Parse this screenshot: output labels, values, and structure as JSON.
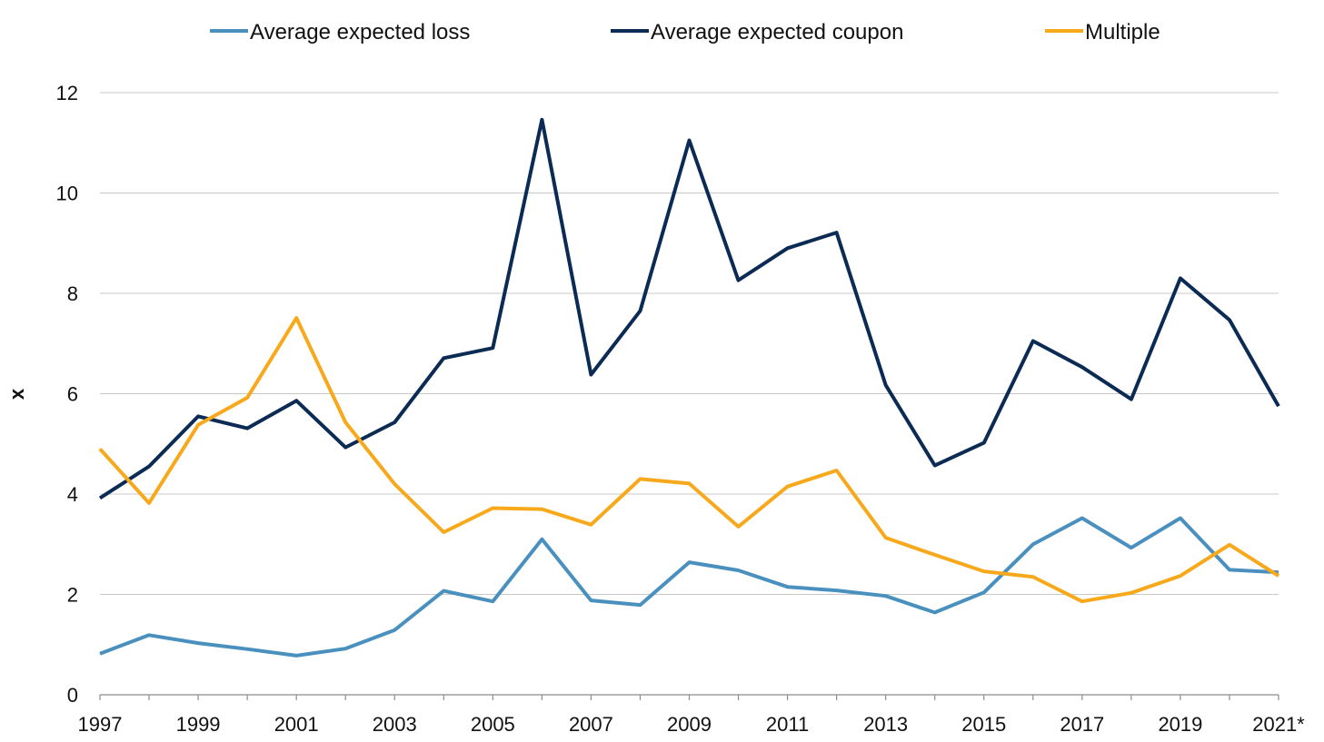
{
  "chart_data": {
    "type": "line",
    "title": "",
    "xlabel": "",
    "ylabel": "x",
    "ylim": [
      0,
      12
    ],
    "yticks": [
      0,
      2,
      4,
      6,
      8,
      10,
      12
    ],
    "grid": "horizontal",
    "legend_position": "top",
    "x": [
      "1997",
      "1998",
      "1999",
      "2000",
      "2001",
      "2002",
      "2003",
      "2004",
      "2005",
      "2006",
      "2007",
      "2008",
      "2009",
      "2010",
      "2011",
      "2012",
      "2013",
      "2014",
      "2015",
      "2016",
      "2017",
      "2018",
      "2019",
      "2020",
      "2021*"
    ],
    "x_tick_labels": [
      "1997",
      "1999",
      "2001",
      "2003",
      "2005",
      "2007",
      "2009",
      "2011",
      "2013",
      "2015",
      "2017",
      "2019",
      "2021*"
    ],
    "series": [
      {
        "name": "Average expected loss",
        "color": "#4a90bf",
        "values": [
          0.82,
          1.19,
          1.03,
          0.91,
          0.78,
          0.92,
          1.29,
          2.07,
          1.86,
          3.1,
          1.88,
          1.79,
          2.64,
          2.48,
          2.15,
          2.08,
          1.97,
          1.64,
          2.04,
          3.0,
          3.52,
          2.93,
          3.52,
          2.49,
          2.44
        ]
      },
      {
        "name": "Average expected coupon",
        "color": "#0b2a54",
        "values": [
          3.92,
          4.55,
          5.55,
          5.31,
          5.86,
          4.93,
          5.43,
          6.71,
          6.91,
          11.46,
          6.38,
          7.65,
          11.05,
          8.26,
          8.9,
          9.21,
          6.17,
          4.57,
          5.02,
          7.05,
          6.53,
          5.89,
          8.3,
          7.47,
          5.75
        ]
      },
      {
        "name": "Multiple",
        "color": "#f7a81b",
        "values": [
          4.9,
          3.82,
          5.38,
          5.92,
          7.51,
          5.43,
          4.2,
          3.24,
          3.72,
          3.7,
          3.39,
          4.3,
          4.21,
          3.35,
          4.15,
          4.47,
          3.13,
          2.79,
          2.46,
          2.35,
          1.86,
          2.03,
          2.37,
          2.99,
          2.37
        ]
      }
    ]
  }
}
